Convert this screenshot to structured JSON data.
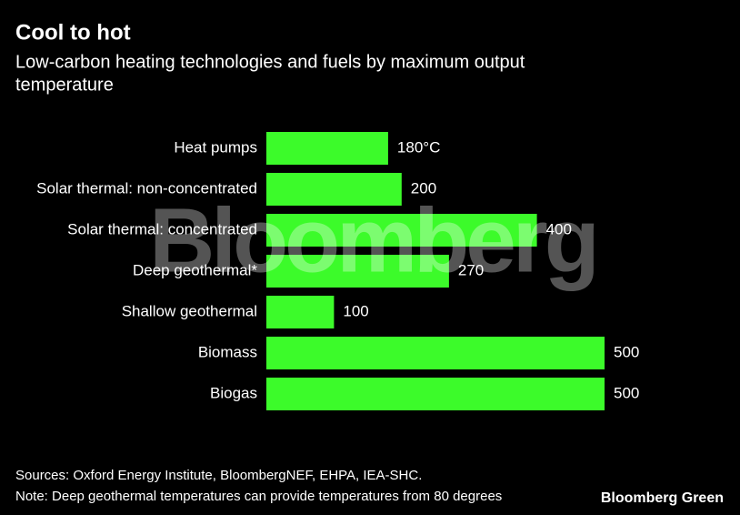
{
  "chart_data": {
    "type": "bar",
    "orientation": "horizontal",
    "title": "Cool to hot",
    "subtitle": [
      "Low-carbon heating technologies and fuels by maximum output",
      "temperature"
    ],
    "categories": [
      "Heat pumps",
      "Solar thermal: non-concentrated",
      "Solar thermal: concentrated",
      "Deep geothermal*",
      "Shallow geothermal",
      "Biomass",
      "Biogas"
    ],
    "values": [
      180,
      200,
      400,
      270,
      100,
      500,
      500
    ],
    "value_labels": [
      "180°C",
      "200",
      "400",
      "270",
      "100",
      "500",
      "500"
    ],
    "color": "#3cfb2a",
    "watermark": "Bloomberg",
    "sources": "Sources: Oxford Energy Institute, BloombergNEF, EHPA, IEA-SHC.",
    "note": "Note: Deep geothermal temperatures can provide temperatures from 80 degrees",
    "logo": "Bloomberg Green"
  }
}
